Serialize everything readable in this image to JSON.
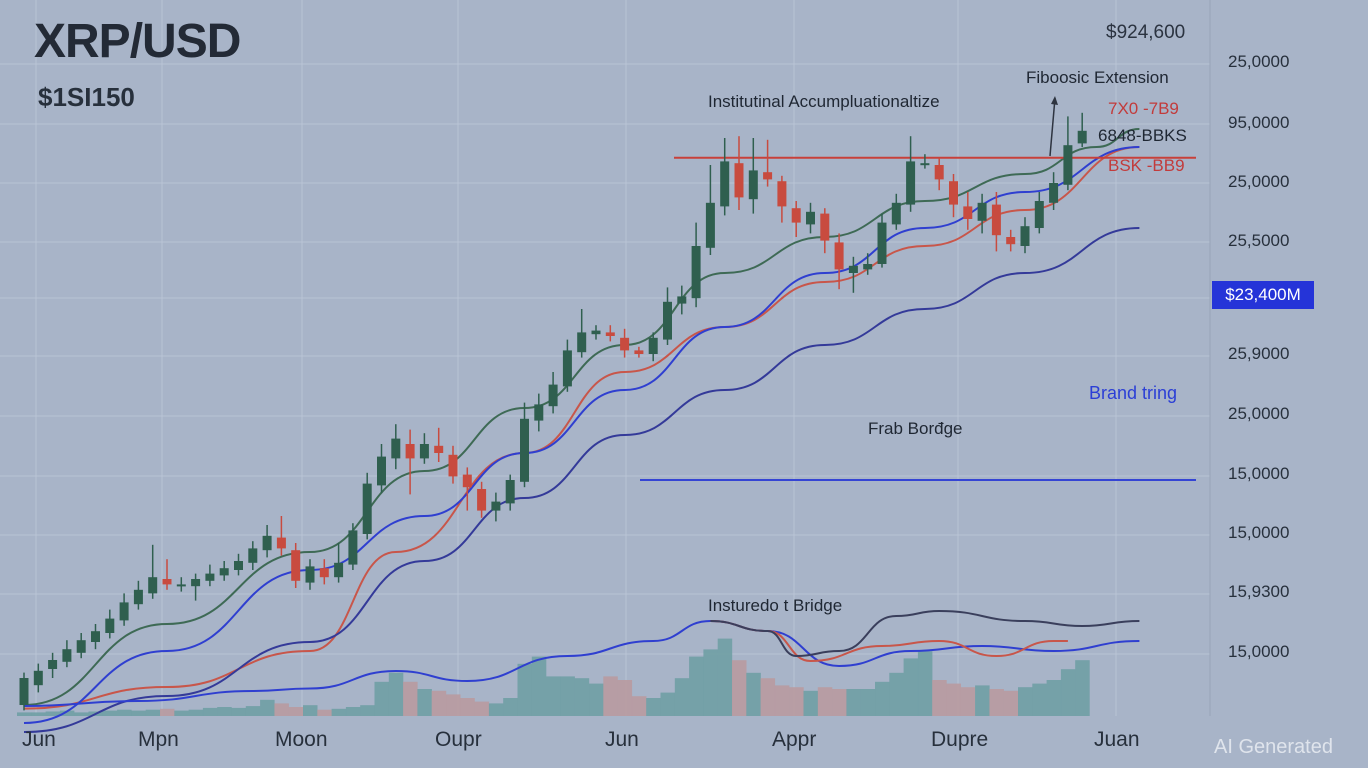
{
  "header": {
    "title": "XRP/USD",
    "subtitle": "$1SI150",
    "top_price": "$924,600"
  },
  "annotations": {
    "fib_extension": "Fiboosic Extension",
    "institutional": "Institutinal Accumpluationaltize",
    "red_level_1": "7X0 -7B9",
    "dark_level": "6848-BBKS",
    "red_level_2": "BSK -BB9",
    "brand_ring": "Brand tring",
    "frab_bridge": "Frab Borđge",
    "instruredo_bridge": "Insturedo t Bridge"
  },
  "price_tag": "$23,400M",
  "watermark": "AI Generated",
  "colors": {
    "background": "#a8b4c8",
    "bull": "#2f5f4f",
    "bear": "#c84b3f",
    "ma_green": "#3e6a55",
    "ma_red": "#c8564a",
    "ma_blue": "#2f3fd0",
    "ma_navy": "#343a99",
    "accent_blue": "#2534d8"
  },
  "chart_data": {
    "type": "candlestick",
    "title": "XRP/USD",
    "y_ticks": [
      "25,0000",
      "95,0000",
      "25,0000",
      "25,5000",
      "$23,400M",
      "25,9000",
      "25,0000",
      "15,0000",
      "15,0000",
      "15,9300",
      "15,0000"
    ],
    "x_ticks": [
      "Jun",
      "Mpn",
      "Moon",
      "Oupr",
      "Jun",
      "Appr",
      "Dupre",
      "Juan"
    ],
    "grid": true,
    "ohlc": [
      [
        0.5,
        2.0,
        0.2,
        2.3
      ],
      [
        1.6,
        2.4,
        1.2,
        2.8
      ],
      [
        2.5,
        3.0,
        2.0,
        3.4
      ],
      [
        2.9,
        3.6,
        2.6,
        4.1
      ],
      [
        3.4,
        4.1,
        3.1,
        4.5
      ],
      [
        4.0,
        4.6,
        3.6,
        5.0
      ],
      [
        4.5,
        5.3,
        4.2,
        5.8
      ],
      [
        5.2,
        6.2,
        4.9,
        6.7
      ],
      [
        6.1,
        6.9,
        5.8,
        7.4
      ],
      [
        6.7,
        7.6,
        6.4,
        9.4
      ],
      [
        7.5,
        7.2,
        6.9,
        8.6
      ],
      [
        7.2,
        7.2,
        6.8,
        7.6
      ],
      [
        7.1,
        7.5,
        6.3,
        7.8
      ],
      [
        7.4,
        7.8,
        7.1,
        8.3
      ],
      [
        7.7,
        8.1,
        7.4,
        8.5
      ],
      [
        8.0,
        8.5,
        7.7,
        8.9
      ],
      [
        8.4,
        9.2,
        8.0,
        9.6
      ],
      [
        9.1,
        9.9,
        8.7,
        10.5
      ],
      [
        9.8,
        9.2,
        8.8,
        11.0
      ],
      [
        9.1,
        7.4,
        7.0,
        9.5
      ],
      [
        7.3,
        8.2,
        6.9,
        8.6
      ],
      [
        8.1,
        7.6,
        7.2,
        8.6
      ],
      [
        7.6,
        8.4,
        7.3,
        9.5
      ],
      [
        8.3,
        10.2,
        8.0,
        10.6
      ],
      [
        10.0,
        12.8,
        9.7,
        13.4
      ],
      [
        12.7,
        14.3,
        12.3,
        15.0
      ],
      [
        14.2,
        15.3,
        13.6,
        16.1
      ],
      [
        15.0,
        14.2,
        12.2,
        15.8
      ],
      [
        14.2,
        15.0,
        13.9,
        15.6
      ],
      [
        14.9,
        14.5,
        14.0,
        15.9
      ],
      [
        14.4,
        13.2,
        12.8,
        14.9
      ],
      [
        13.3,
        12.6,
        11.3,
        13.7
      ],
      [
        12.5,
        11.3,
        10.9,
        12.9
      ],
      [
        11.3,
        11.8,
        10.7,
        12.3
      ],
      [
        11.7,
        13.0,
        11.3,
        13.3
      ],
      [
        12.9,
        16.4,
        12.6,
        17.3
      ],
      [
        16.3,
        17.2,
        15.7,
        17.8
      ],
      [
        17.1,
        18.3,
        16.7,
        19.0
      ],
      [
        18.2,
        20.2,
        17.9,
        20.8
      ],
      [
        20.1,
        21.2,
        19.8,
        22.5
      ],
      [
        21.1,
        21.3,
        20.8,
        21.6
      ],
      [
        21.2,
        21.0,
        20.7,
        21.6
      ],
      [
        20.9,
        20.2,
        19.8,
        21.4
      ],
      [
        20.2,
        20.0,
        19.8,
        20.4
      ],
      [
        20.0,
        20.9,
        19.6,
        21.2
      ],
      [
        20.8,
        22.9,
        20.5,
        23.7
      ],
      [
        22.8,
        23.2,
        22.2,
        23.8
      ],
      [
        23.1,
        26.0,
        22.6,
        27.3
      ],
      [
        25.9,
        28.4,
        25.5,
        30.5
      ],
      [
        28.2,
        30.7,
        27.7,
        32.0
      ],
      [
        30.6,
        28.7,
        28.0,
        32.1
      ],
      [
        28.6,
        30.2,
        27.8,
        32.0
      ],
      [
        30.1,
        29.7,
        29.3,
        31.9
      ],
      [
        29.6,
        28.2,
        27.3,
        29.9
      ],
      [
        28.1,
        27.3,
        26.5,
        28.5
      ],
      [
        27.2,
        27.9,
        26.7,
        28.4
      ],
      [
        27.8,
        26.3,
        25.6,
        28.1
      ],
      [
        26.2,
        24.7,
        23.6,
        26.7
      ],
      [
        24.5,
        24.9,
        23.4,
        25.4
      ],
      [
        24.7,
        25.0,
        24.4,
        25.6
      ],
      [
        25.0,
        27.3,
        24.8,
        27.8
      ],
      [
        27.2,
        28.4,
        26.9,
        28.9
      ],
      [
        28.3,
        30.7,
        27.9,
        32.1
      ],
      [
        30.6,
        30.6,
        30.3,
        31.1
      ],
      [
        30.5,
        29.7,
        29.1,
        30.9
      ],
      [
        29.6,
        28.3,
        27.6,
        30.0
      ],
      [
        28.2,
        27.5,
        26.9,
        29.0
      ],
      [
        27.4,
        28.4,
        26.7,
        28.9
      ],
      [
        28.3,
        26.6,
        25.7,
        29.0
      ],
      [
        26.5,
        26.1,
        25.7,
        26.9
      ],
      [
        26.0,
        27.1,
        25.6,
        27.6
      ],
      [
        27.0,
        28.5,
        26.7,
        29.0
      ],
      [
        28.4,
        29.5,
        28.0,
        30.1
      ],
      [
        29.4,
        31.6,
        29.1,
        33.2
      ],
      [
        31.7,
        32.4,
        31.5,
        33.4
      ]
    ],
    "volume": [
      0.2,
      0.2,
      0.25,
      0.3,
      0.2,
      0.25,
      0.3,
      0.35,
      0.3,
      0.35,
      0.4,
      0.3,
      0.35,
      0.45,
      0.5,
      0.45,
      0.55,
      0.9,
      0.7,
      0.5,
      0.6,
      0.35,
      0.4,
      0.5,
      0.6,
      1.9,
      2.4,
      1.9,
      1.5,
      1.4,
      1.2,
      1.0,
      0.8,
      0.7,
      1.0,
      2.9,
      3.3,
      2.2,
      2.2,
      2.1,
      1.8,
      2.2,
      2.0,
      1.1,
      1.0,
      1.3,
      2.1,
      3.3,
      3.7,
      4.3,
      3.1,
      2.4,
      2.1,
      1.7,
      1.6,
      1.4,
      1.6,
      1.5,
      1.5,
      1.5,
      1.9,
      2.4,
      3.2,
      3.6,
      2.0,
      1.8,
      1.6,
      1.7,
      1.5,
      1.4,
      1.6,
      1.8,
      2.0,
      2.6,
      3.1
    ],
    "lines": [
      {
        "key": "green_ma",
        "values": [
          [
            0,
            0.5
          ],
          [
            10,
            5.0
          ],
          [
            20,
            9.0
          ],
          [
            28,
            13.5
          ],
          [
            35,
            17.0
          ],
          [
            42,
            20.5
          ],
          [
            49,
            24.5
          ],
          [
            56,
            26.5
          ],
          [
            63,
            28.5
          ],
          [
            70,
            30.0
          ],
          [
            75,
            31.5
          ],
          [
            78,
            32.5
          ]
        ]
      },
      {
        "key": "red_ma",
        "values": [
          [
            0,
            0.3
          ],
          [
            10,
            1.5
          ],
          [
            20,
            3.5
          ],
          [
            26,
            9.0
          ],
          [
            35,
            14.5
          ],
          [
            42,
            19.0
          ],
          [
            49,
            21.5
          ],
          [
            56,
            24.0
          ],
          [
            63,
            26.0
          ],
          [
            70,
            28.0
          ],
          [
            78,
            31.5
          ]
        ]
      },
      {
        "key": "blue_ma",
        "values": [
          [
            0,
            -0.5
          ],
          [
            10,
            3.5
          ],
          [
            20,
            8.0
          ],
          [
            28,
            11.0
          ],
          [
            35,
            14.5
          ],
          [
            42,
            18.0
          ],
          [
            49,
            21.5
          ],
          [
            56,
            24.5
          ],
          [
            63,
            27.0
          ],
          [
            70,
            29.0
          ],
          [
            78,
            31.5
          ]
        ]
      },
      {
        "key": "navy_ma",
        "values": [
          [
            0,
            -1.0
          ],
          [
            10,
            1.0
          ],
          [
            20,
            4.0
          ],
          [
            28,
            8.5
          ],
          [
            35,
            12.0
          ],
          [
            42,
            15.5
          ],
          [
            49,
            18.0
          ],
          [
            56,
            20.5
          ],
          [
            63,
            22.5
          ],
          [
            70,
            24.5
          ],
          [
            78,
            27.0
          ]
        ]
      }
    ],
    "oscillator": [
      {
        "key": "osc_blue",
        "values": [
          [
            0,
            0.0
          ],
          [
            8,
            0.1
          ],
          [
            16,
            0.3
          ],
          [
            20,
            0.35
          ],
          [
            26,
            0.7
          ],
          [
            31,
            0.5
          ],
          [
            38,
            1.0
          ],
          [
            44,
            1.3
          ],
          [
            48,
            1.7
          ],
          [
            52,
            1.5
          ],
          [
            57,
            0.8
          ],
          [
            62,
            1.1
          ],
          [
            67,
            1.2
          ],
          [
            72,
            1.1
          ],
          [
            78,
            1.3
          ]
        ]
      },
      {
        "key": "osc_red",
        "values": [
          [
            48,
            1.7
          ],
          [
            52,
            1.5
          ],
          [
            55,
            0.9
          ],
          [
            60,
            1.2
          ],
          [
            64,
            1.3
          ],
          [
            68,
            1.0
          ],
          [
            72,
            1.3
          ],
          [
            73,
            1.3
          ]
        ]
      },
      {
        "key": "osc_dark",
        "values": [
          [
            48,
            1.7
          ],
          [
            52,
            1.5
          ],
          [
            54,
            1.0
          ],
          [
            57,
            1.1
          ],
          [
            61,
            1.8
          ],
          [
            64,
            1.9
          ],
          [
            70,
            1.7
          ],
          [
            74,
            1.6
          ],
          [
            78,
            1.7
          ]
        ]
      }
    ],
    "levels": [
      {
        "key": "institutional",
        "value": 30.9
      },
      {
        "key": "brand_ring",
        "value": 13.0
      }
    ]
  }
}
